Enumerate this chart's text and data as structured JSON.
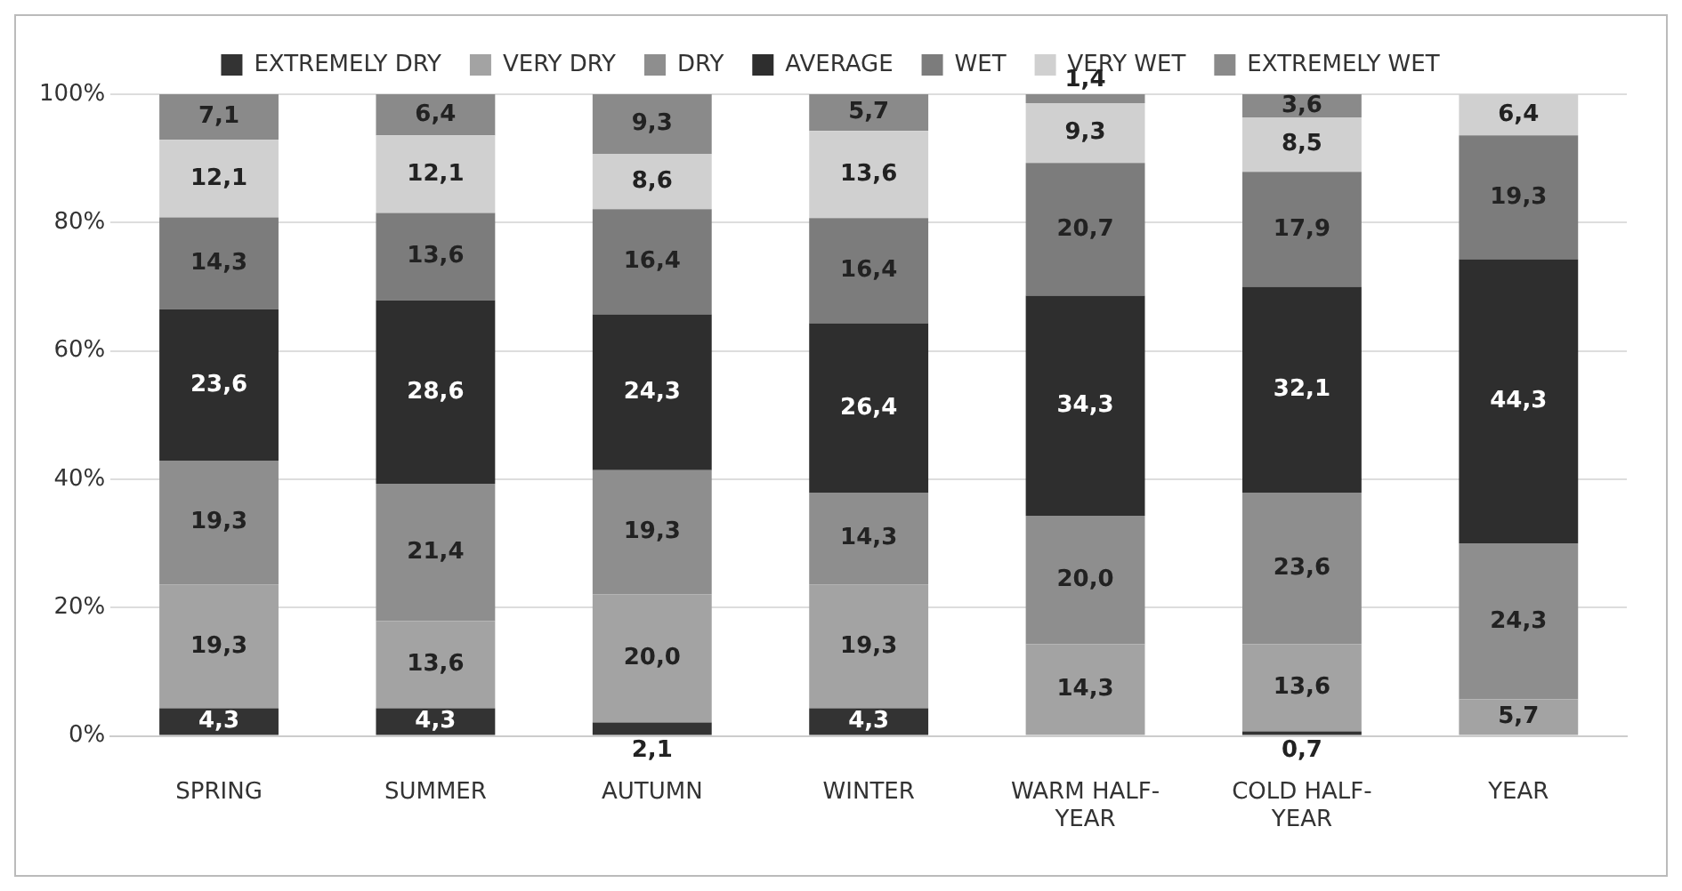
{
  "chart_data": {
    "type": "bar",
    "stacked": true,
    "legend": "top",
    "grid": "y",
    "categories": [
      "SPRING",
      "SUMMER",
      "AUTUMN",
      "WINTER",
      "WARM HALF-YEAR",
      "COLD HALF-YEAR",
      "YEAR"
    ],
    "ylim": [
      0,
      100
    ],
    "yticks": [
      {
        "value": 0,
        "label": "0%"
      },
      {
        "value": 20,
        "label": "20%"
      },
      {
        "value": 40,
        "label": "40%"
      },
      {
        "value": 60,
        "label": "60%"
      },
      {
        "value": 80,
        "label": "80%"
      },
      {
        "value": 100,
        "label": "100%"
      }
    ],
    "series": [
      {
        "name": "EXTREMELY DRY",
        "color": "#333333",
        "values": [
          4.3,
          4.3,
          2.1,
          4.3,
          null,
          0.7,
          null
        ],
        "value_labels": [
          "4,3",
          "4,3",
          "2,1",
          "4,3",
          null,
          "0,7",
          null
        ]
      },
      {
        "name": "VERY DRY",
        "color": "#a3a3a3",
        "values": [
          19.3,
          13.6,
          20.0,
          19.3,
          14.3,
          13.6,
          5.7
        ],
        "value_labels": [
          "19,3",
          "13,6",
          "20,0",
          "19,3",
          "14,3",
          "13,6",
          "5,7"
        ]
      },
      {
        "name": "DRY",
        "color": "#8e8e8e",
        "values": [
          19.3,
          21.4,
          19.3,
          14.3,
          20.0,
          23.6,
          24.3
        ],
        "value_labels": [
          "19,3",
          "21,4",
          "19,3",
          "14,3",
          "20,0",
          "23,6",
          "24,3"
        ]
      },
      {
        "name": "AVERAGE",
        "color": "#2e2e2e",
        "values": [
          23.6,
          28.6,
          24.3,
          26.4,
          34.3,
          32.1,
          44.3
        ],
        "value_labels": [
          "23,6",
          "28,6",
          "24,3",
          "26,4",
          "34,3",
          "32,1",
          "44,3"
        ]
      },
      {
        "name": "WET",
        "color": "#7c7c7c",
        "values": [
          14.3,
          13.6,
          16.4,
          16.4,
          20.7,
          17.9,
          19.3
        ],
        "value_labels": [
          "14,3",
          "13,6",
          "16,4",
          "16,4",
          "20,7",
          "17,9",
          "19,3"
        ]
      },
      {
        "name": "VERY WET",
        "color": "#d0d0d0",
        "values": [
          12.1,
          12.1,
          8.6,
          13.6,
          9.3,
          8.5,
          6.4
        ],
        "value_labels": [
          "12,1",
          "12,1",
          "8,6",
          "13,6",
          "9,3",
          "8,5",
          "6,4"
        ]
      },
      {
        "name": "EXTREMELY WET",
        "color": "#8a8a8a",
        "values": [
          7.1,
          6.4,
          9.3,
          5.7,
          1.4,
          3.6,
          null
        ],
        "value_labels": [
          "7,1",
          "6,4",
          "9,3",
          "5,7",
          "1,4",
          "3,6",
          null
        ]
      }
    ]
  }
}
